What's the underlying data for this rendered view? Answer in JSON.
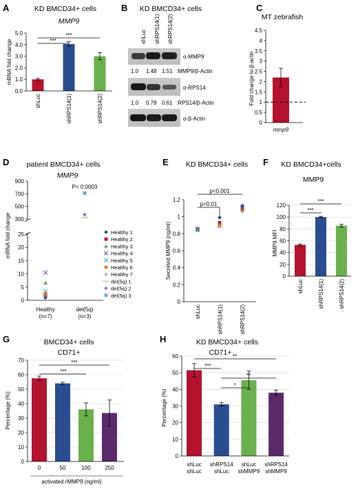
{
  "colors": {
    "red": "#b5122e",
    "blue": "#2a4d8f",
    "green": "#6ab04c",
    "purple": "#5a2a6b",
    "gray": "#5a5a5a"
  },
  "panels": {
    "A": {
      "letter": "A",
      "title": "KD BMCD34+ cells",
      "subtitle": "MMP9",
      "ylabel": "mRNA fold change",
      "sig": [
        "***",
        "***"
      ]
    },
    "B": {
      "letter": "B",
      "title": "KD BMCD34+ cells",
      "lanes": [
        "shLuc",
        "shRPS14(1)",
        "shRPS14(2)"
      ],
      "blots": [
        {
          "label": "α-MMP9",
          "quant": [
            "1.0",
            "1.48",
            "1.51"
          ],
          "quant_label": ":MMP9/β-Actin"
        },
        {
          "label": "α-RPS14",
          "quant": [
            "1.0",
            "0.78",
            "0.61"
          ],
          "quant_label": ":RPS14/β-Actin"
        },
        {
          "label": "α-β-Actin"
        }
      ]
    },
    "C": {
      "letter": "C",
      "title": "MT zebrafish",
      "ylabel": "Fold change to β-actin"
    },
    "D": {
      "letter": "D",
      "title": "patient BMCD34+ cells",
      "subtitle": "MMP9",
      "ylabel": "mRNA fold change",
      "pvalue": "P< 0.0003",
      "group_labels": [
        "Healthy",
        "(n=7)",
        "del(5q)",
        "(n=3)"
      ]
    },
    "E": {
      "letter": "E",
      "title": "KD BMCD34+ cells",
      "ylabel": "Secreted MMP9 (ng/ml)",
      "sig": [
        "p<0.001",
        "p<0.01"
      ]
    },
    "F": {
      "letter": "F",
      "title": "KD BMCD34+cells",
      "subtitle": "MMP9",
      "ylabel": "MMP9 MFI",
      "sig": [
        "***",
        "***"
      ]
    },
    "G": {
      "letter": "G",
      "title": "BMCD34+ cells",
      "subtitle": "CD71+",
      "ylabel": "Percentage (%)",
      "xlabel": "activated rMMP9 (ng/ml)",
      "sig": [
        "***",
        "***"
      ]
    },
    "H": {
      "letter": "H",
      "title": "KD BMCD34+ cells",
      "subtitle": "CD71+",
      "ylabel": "Percentage (%)",
      "sig": [
        "**",
        "***",
        "**",
        "*"
      ]
    }
  },
  "chart_data": [
    {
      "id": "A",
      "type": "bar",
      "categories": [
        "shLuc",
        "shRPS14(1)",
        "shRPS14(2)"
      ],
      "values": [
        1.0,
        4.05,
        3.0
      ],
      "errors": [
        0.08,
        0.2,
        0.3
      ],
      "ylim": [
        0,
        5
      ],
      "yticks": [
        "0.0",
        "1.0",
        "2.0",
        "3.0",
        "4.0",
        "5.0"
      ]
    },
    {
      "id": "C",
      "type": "bar",
      "categories": [
        "mmp9"
      ],
      "values": [
        2.2
      ],
      "errors": [
        0.45
      ],
      "reference_line": 1,
      "ylim": [
        0,
        4.5
      ],
      "yticks": [
        "0",
        "0.5",
        "1",
        "1.5",
        "2",
        "2.5",
        "3",
        "3.5",
        "4",
        "4.5"
      ]
    },
    {
      "id": "D",
      "type": "scatter",
      "categories": [
        "Healthy\n(n=7)",
        "del(5q)\n(n=3)"
      ],
      "yticks_lower": [
        "0",
        "5",
        "10",
        "15",
        "20",
        "25"
      ],
      "yticks_upper": [
        "300",
        "500",
        "700",
        "900"
      ],
      "axis_break": [
        25,
        300
      ],
      "series": [
        {
          "name": "Healthy 1",
          "group": 0,
          "value": 1.0,
          "marker": "diamond",
          "color": "#1f3c88"
        },
        {
          "name": "Healthy 2",
          "group": 0,
          "value": 2.0,
          "marker": "square",
          "color": "#b5122e"
        },
        {
          "name": "Healthy 3",
          "group": 0,
          "value": 6.6,
          "marker": "triangle",
          "color": "#4aa84a"
        },
        {
          "name": "Healthy 4",
          "group": 0,
          "value": 10.5,
          "marker": "x",
          "color": "#6b3a8c"
        },
        {
          "name": "Healthy 5",
          "group": 0,
          "value": 3.4,
          "marker": "x",
          "color": "#2aa7c9"
        },
        {
          "name": "Healthy 6",
          "group": 0,
          "value": 2.5,
          "marker": "circle",
          "color": "#e07b1a"
        },
        {
          "name": "Healthy 7",
          "group": 0,
          "value": 1.6,
          "marker": "plus",
          "color": "#7a8fc0"
        },
        {
          "name": "del(5q) 1",
          "group": 1,
          "value": 320,
          "marker": "dash",
          "color": "#b7c46b"
        },
        {
          "name": "del(5q) 2",
          "group": 1,
          "value": 370,
          "marker": "diamond",
          "color": "#8c7ac9"
        },
        {
          "name": "del(5q) 3",
          "group": 1,
          "value": 710,
          "marker": "square",
          "color": "#5aaee0"
        }
      ]
    },
    {
      "id": "E",
      "type": "scatter",
      "categories": [
        "shLuc",
        "shRPS14(1)",
        "shRPS14(2)"
      ],
      "ylim": [
        0,
        1.2
      ],
      "yticks": [
        "0",
        "0.2",
        "0.4",
        "0.6",
        "0.8",
        "1",
        "1.2"
      ],
      "points": [
        {
          "group": 0,
          "value": 0.855,
          "marker": "diamond",
          "color": "#1f3c88"
        },
        {
          "group": 0,
          "value": 0.85,
          "marker": "square",
          "color": "#b5122e"
        },
        {
          "group": 0,
          "value": 0.84,
          "marker": "triangle",
          "color": "#4aa84a"
        },
        {
          "group": 0,
          "value": 0.86,
          "marker": "x",
          "color": "#6b3a8c"
        },
        {
          "group": 0,
          "value": 0.845,
          "marker": "x",
          "color": "#2aa7c9"
        },
        {
          "group": 1,
          "value": 0.99,
          "marker": "diamond",
          "color": "#1f3c88"
        },
        {
          "group": 1,
          "value": 0.93,
          "marker": "square",
          "color": "#b5122e"
        },
        {
          "group": 1,
          "value": 0.91,
          "marker": "triangle",
          "color": "#4aa84a"
        },
        {
          "group": 1,
          "value": 0.89,
          "marker": "x",
          "color": "#6b3a8c"
        },
        {
          "group": 1,
          "value": 0.9,
          "marker": "circle",
          "color": "#e07b1a"
        },
        {
          "group": 2,
          "value": 1.13,
          "marker": "diamond",
          "color": "#1f3c88"
        },
        {
          "group": 2,
          "value": 1.09,
          "marker": "square",
          "color": "#b5122e"
        },
        {
          "group": 2,
          "value": 1.07,
          "marker": "triangle",
          "color": "#4aa84a"
        },
        {
          "group": 2,
          "value": 1.08,
          "marker": "circle",
          "color": "#e07b1a"
        },
        {
          "group": 2,
          "value": 1.1,
          "marker": "x",
          "color": "#6b3a8c"
        }
      ]
    },
    {
      "id": "F",
      "type": "bar",
      "categories": [
        "shLuc",
        "shRPS14(1)",
        "shRPS14(2)"
      ],
      "values": [
        53,
        100,
        85.5
      ],
      "errors": [
        1.5,
        1.2,
        2.5
      ],
      "ylim": [
        0,
        120
      ],
      "yticks": [
        "0",
        "20",
        "40",
        "60",
        "80",
        "100",
        "120"
      ]
    },
    {
      "id": "G",
      "type": "bar",
      "categories": [
        "0",
        "50",
        "100",
        "250"
      ],
      "values": [
        57.5,
        54,
        36,
        33.5
      ],
      "errors": [
        1.5,
        0.8,
        4.5,
        9
      ],
      "ylim": [
        0,
        70
      ],
      "yticks": [
        "0",
        "10",
        "20",
        "30",
        "40",
        "50",
        "60",
        "70"
      ]
    },
    {
      "id": "H",
      "type": "bar",
      "categories": [
        "shLuc\nshLuc",
        "shRPS14\nshLuc",
        "shLuc\nshMMP9",
        "shRPS14\nshMMP9"
      ],
      "values": [
        51.5,
        31,
        45.5,
        38
      ],
      "errors": [
        4,
        1,
        5.5,
        1.5
      ],
      "ylim": [
        0,
        60
      ],
      "yticks": [
        "0",
        "10",
        "20",
        "30",
        "40",
        "50",
        "60"
      ]
    }
  ]
}
